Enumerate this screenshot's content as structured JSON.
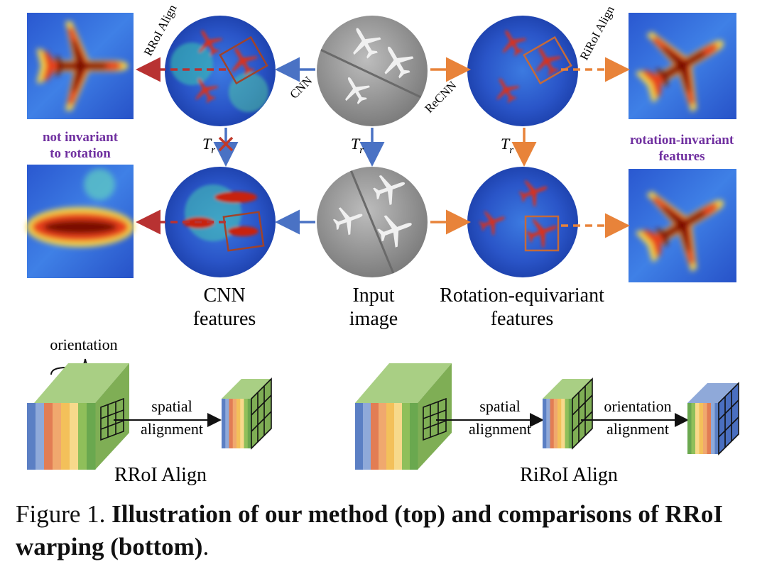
{
  "labels": {
    "rroi_align_top": "RRoI Align",
    "riroi_align_top": "RiRoI Align",
    "cnn_arrow": "CNN",
    "recnn_arrow": "ReCNN",
    "tr": "T",
    "tr_sub": "r",
    "not_invariant_1": "not invariant",
    "not_invariant_2": "to rotation",
    "rot_inv_1": "rotation-invariant",
    "rot_inv_2": "features",
    "cnn_features_1": "CNN",
    "cnn_features_2": "features",
    "input_image_1": "Input",
    "input_image_2": "image",
    "rot_equiv_1": "Rotation-equivariant",
    "rot_equiv_2": "features",
    "orientation": "orientation",
    "spatial_1": "spatial",
    "alignment_1": "alignment",
    "spatial_2": "spatial",
    "alignment_2": "alignment",
    "orientation_2": "orientation",
    "alignment_3": "alignment",
    "rroi_align_bottom": "RRoI Align",
    "riroi_align_bottom": "RiRoI Align"
  },
  "caption": {
    "prefix": "Figure 1. ",
    "bold_1": "Illustration of our method (top) and comparisons of RRoI warping (bottom)",
    "suffix": "."
  },
  "colors": {
    "blue_arrow": "#4a72c4",
    "orange_arrow": "#e8833a",
    "red_arrow": "#b83232",
    "purple_text": "#7030a0",
    "cross": "#c0392b"
  },
  "stripe_colors": [
    "#5b7fc4",
    "#8fa9d9",
    "#e27d54",
    "#f0a86e",
    "#f3c05a",
    "#f7d98b",
    "#8fbf5a",
    "#6aa84f"
  ]
}
